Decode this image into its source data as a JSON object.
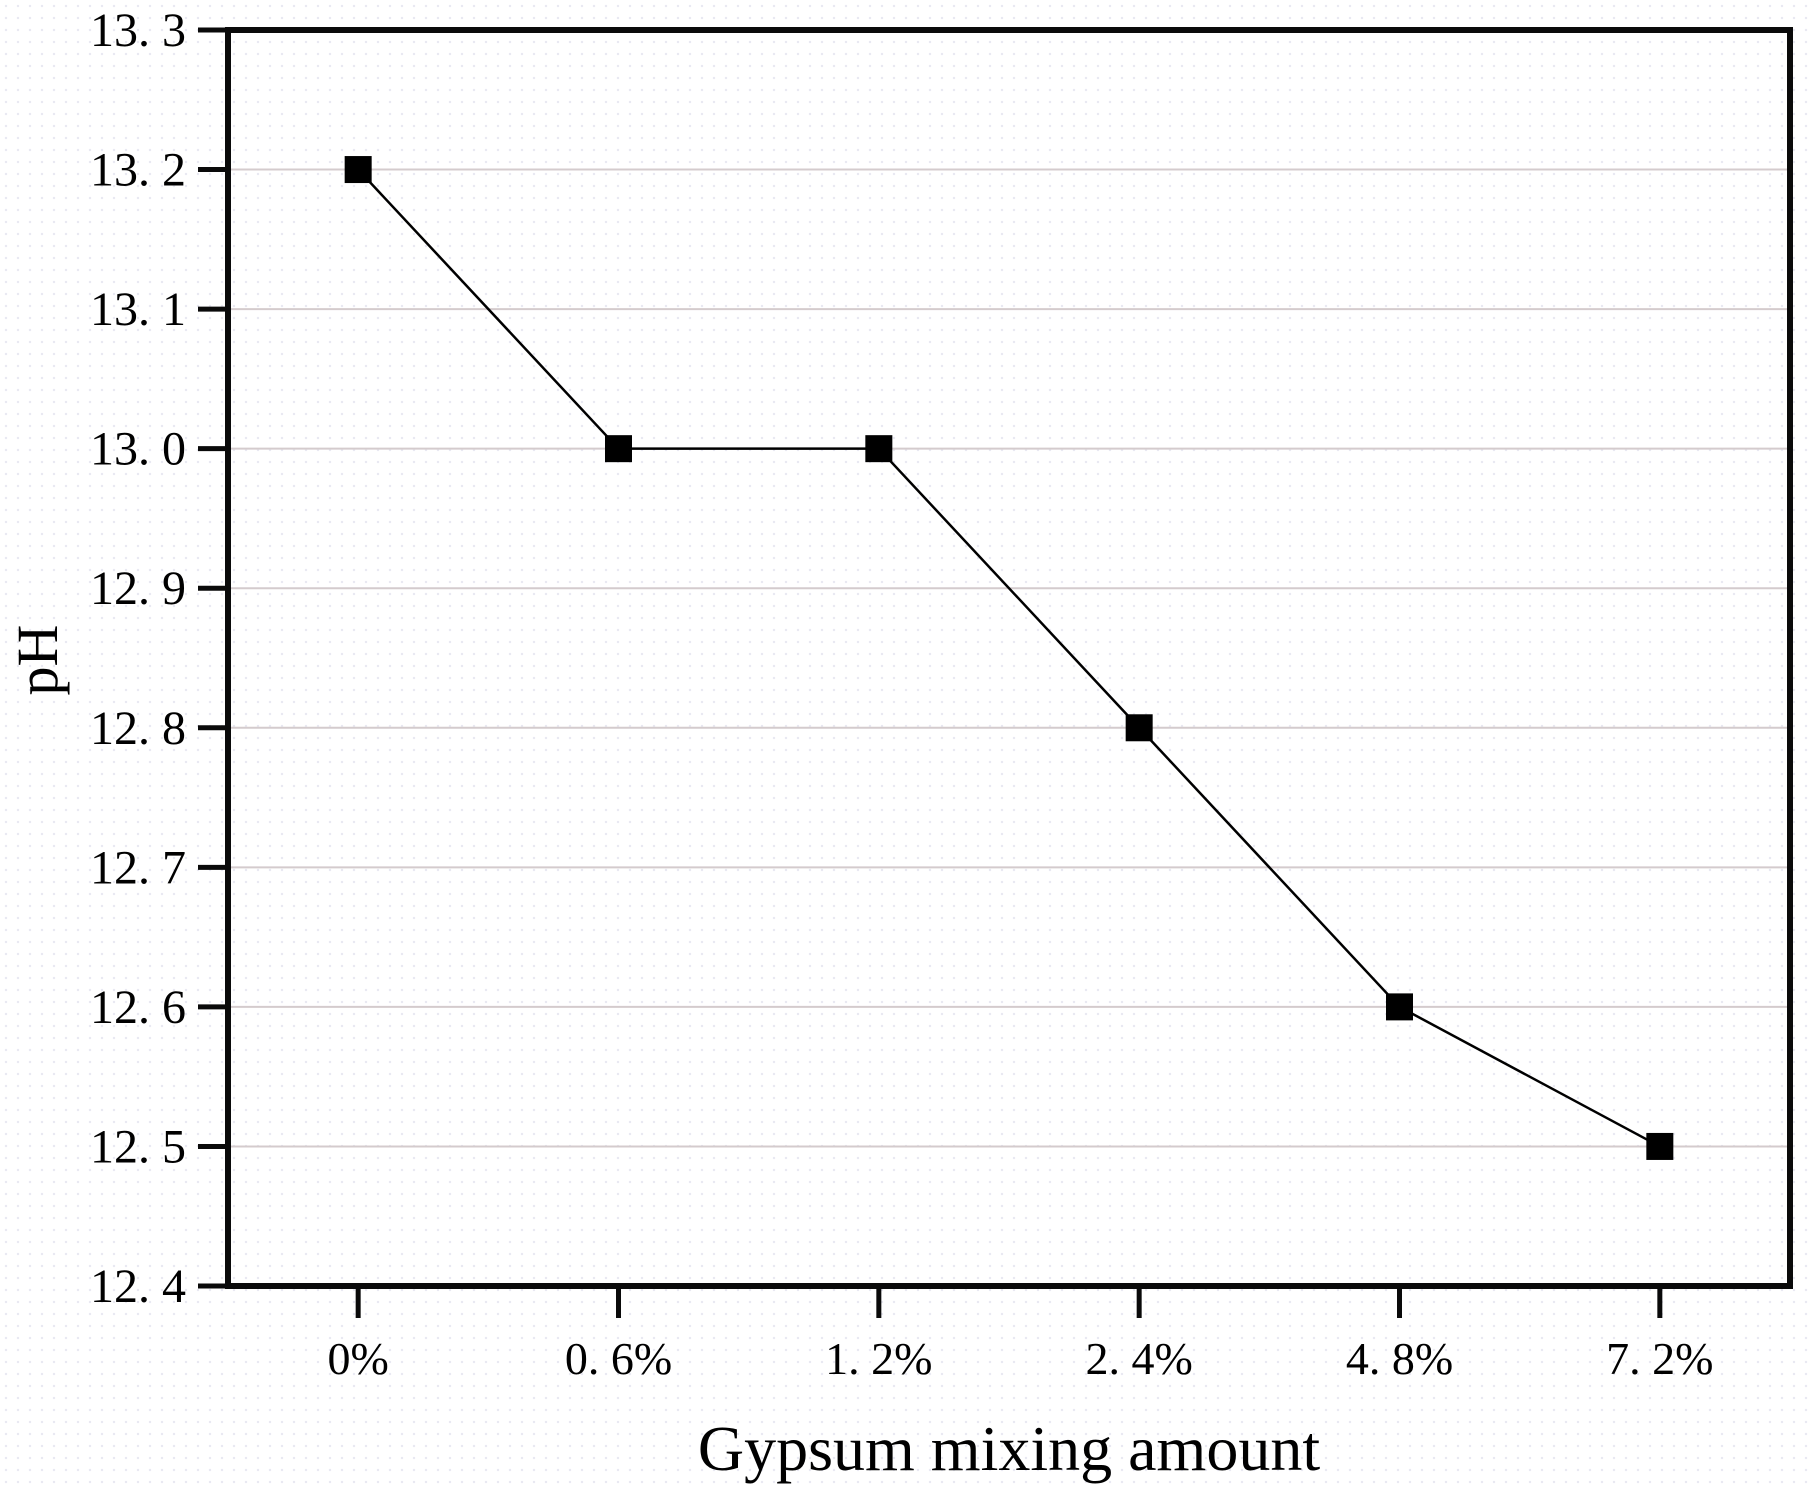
{
  "chart_data": {
    "type": "line",
    "title": "",
    "xlabel": "Gypsum mixing amount",
    "ylabel": "pH",
    "categories": [
      "0%",
      "0.6%",
      "1.2%",
      "2.4%",
      "4.8%",
      "7.2%"
    ],
    "x_tick_labels": [
      "0%",
      "0. 6%",
      "1. 2%",
      "2. 4%",
      "4. 8%",
      "7. 2%"
    ],
    "series": [
      {
        "name": "pH",
        "values": [
          13.2,
          13.0,
          13.0,
          12.8,
          12.6,
          12.5
        ]
      }
    ],
    "ylim": [
      12.4,
      13.3
    ],
    "y_ticks": [
      12.4,
      12.5,
      12.6,
      12.7,
      12.8,
      12.9,
      13.0,
      13.1,
      13.2,
      13.3
    ],
    "y_tick_labels": [
      "12. 4",
      "12. 5",
      "12. 6",
      "12. 7",
      "12. 8",
      "12. 9",
      "13. 0",
      "13. 1",
      "13. 2",
      "13. 3"
    ],
    "grid": "horizontal-on",
    "legend": "none",
    "marker": "filled-square",
    "colors": {
      "line": "#000000",
      "marker": "#000000",
      "axis": "#0a0a0a",
      "grid": "#d4cbcd",
      "text": "#000000"
    }
  }
}
